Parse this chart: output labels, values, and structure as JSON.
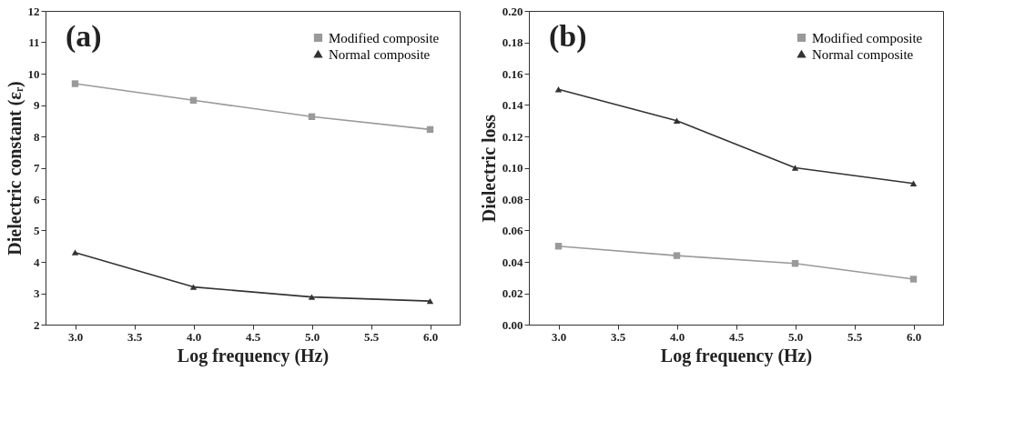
{
  "chart_data": [
    {
      "type": "line",
      "xlabel": "Log frequency (Hz)",
      "ylabel": "Dielectric constant (εᵣ)",
      "annotations": [
        "(a)"
      ],
      "x": [
        3.0,
        4.0,
        5.0,
        6.0
      ],
      "series": [
        {
          "name": "Modified composite",
          "color": "#9a9a9a",
          "marker": "square",
          "values": [
            9.68,
            9.15,
            8.63,
            8.22
          ]
        },
        {
          "name": "Normal composite",
          "color": "#333333",
          "marker": "triangle",
          "values": [
            4.3,
            3.2,
            2.88,
            2.75
          ]
        }
      ],
      "xlim": [
        2.75,
        6.25
      ],
      "xticks": [
        {
          "value": 3,
          "label": "3.0"
        },
        3.5,
        {
          "value": 4,
          "label": "4.0"
        },
        4.5,
        {
          "value": 5,
          "label": "5.0"
        },
        5.5,
        {
          "value": 6,
          "label": "6.0"
        }
      ],
      "ylim": [
        2,
        12
      ],
      "yticks": [
        2,
        3,
        4,
        5,
        6,
        7,
        8,
        9,
        10,
        11,
        12
      ],
      "legend": "top right",
      "grid": false,
      "line_style": "solid"
    },
    {
      "type": "line",
      "xlabel": "Log frequency (Hz)",
      "ylabel": "Dielectric loss",
      "annotations": [
        "(b)"
      ],
      "x": [
        3.0,
        4.0,
        5.0,
        6.0
      ],
      "series": [
        {
          "name": "Modified composite",
          "color": "#9a9a9a",
          "marker": "square",
          "values": [
            0.05,
            0.044,
            0.039,
            0.029
          ]
        },
        {
          "name": "Normal composite",
          "color": "#333333",
          "marker": "triangle",
          "values": [
            0.15,
            0.13,
            0.1,
            0.09
          ]
        }
      ],
      "xlim": [
        2.75,
        6.25
      ],
      "xticks": [
        {
          "value": 3,
          "label": "3.0"
        },
        3.5,
        {
          "value": 4,
          "label": "4.0"
        },
        4.5,
        {
          "value": 5,
          "label": "5.0"
        },
        5.5,
        {
          "value": 6,
          "label": "6.0"
        }
      ],
      "ylim": [
        0,
        0.2
      ],
      "yticks": [
        {
          "value": 0,
          "label": "0.00"
        },
        {
          "value": 0.02,
          "label": "0.02"
        },
        {
          "value": 0.04,
          "label": "0.04"
        },
        {
          "value": 0.06,
          "label": "0.06"
        },
        {
          "value": 0.08,
          "label": "0.08"
        },
        {
          "value": 0.1,
          "label": "0.10"
        },
        {
          "value": 0.12,
          "label": "0.12"
        },
        {
          "value": 0.14,
          "label": "0.14"
        },
        {
          "value": 0.16,
          "label": "0.16"
        },
        {
          "value": 0.18,
          "label": "0.18"
        },
        {
          "value": 0.2,
          "label": "0.20"
        }
      ],
      "legend": "top right",
      "grid": false,
      "line_style": "solid"
    }
  ]
}
